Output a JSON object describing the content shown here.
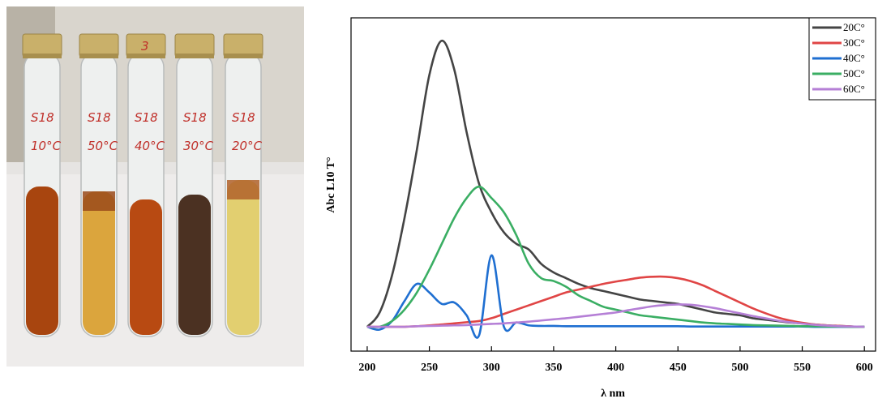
{
  "photo": {
    "cap_mark": "3",
    "tubes": [
      {
        "sample": "S18",
        "temp": "10°C"
      },
      {
        "sample": "S18",
        "temp": "50°C"
      },
      {
        "sample": "S18",
        "temp": "40°C"
      },
      {
        "sample": "S18",
        "temp": "30°C"
      },
      {
        "sample": "S18",
        "temp": "20°C"
      }
    ]
  },
  "chart_data": {
    "type": "line",
    "x_label": "λ nm",
    "y_label": "Abc L10 T°",
    "x": [
      200,
      210,
      220,
      230,
      240,
      250,
      260,
      270,
      280,
      290,
      300,
      310,
      320,
      330,
      340,
      350,
      360,
      370,
      380,
      390,
      400,
      410,
      420,
      430,
      440,
      450,
      460,
      470,
      480,
      490,
      500,
      510,
      520,
      530,
      540,
      550,
      560,
      570,
      580,
      590,
      600
    ],
    "xlim": [
      187,
      609
    ],
    "xticks": [
      200,
      250,
      300,
      350,
      400,
      450,
      500,
      550,
      600
    ],
    "ylim": [
      -0.085,
      1.08
    ],
    "legend": "upper right",
    "series": [
      {
        "name": "20C°",
        "color": "#444444",
        "values": [
          0,
          0.05,
          0.18,
          0.38,
          0.62,
          0.88,
          1.0,
          0.9,
          0.68,
          0.5,
          0.4,
          0.33,
          0.29,
          0.27,
          0.22,
          0.19,
          0.17,
          0.15,
          0.135,
          0.125,
          0.115,
          0.105,
          0.095,
          0.09,
          0.085,
          0.08,
          0.07,
          0.06,
          0.05,
          0.045,
          0.04,
          0.03,
          0.025,
          0.02,
          0.015,
          0.012,
          0.008,
          0.005,
          0.003,
          0.001,
          0
        ]
      },
      {
        "name": "30C°",
        "color": "#e04545",
        "values": [
          0,
          0,
          0,
          0,
          0.002,
          0.005,
          0.008,
          0.012,
          0.016,
          0.02,
          0.03,
          0.045,
          0.06,
          0.075,
          0.09,
          0.105,
          0.12,
          0.13,
          0.14,
          0.15,
          0.158,
          0.165,
          0.172,
          0.175,
          0.175,
          0.17,
          0.16,
          0.145,
          0.125,
          0.105,
          0.085,
          0.065,
          0.048,
          0.033,
          0.022,
          0.014,
          0.008,
          0.005,
          0.003,
          0.001,
          0
        ]
      },
      {
        "name": "40C°",
        "color": "#1f6fd1",
        "values": [
          0,
          -0.01,
          0.02,
          0.09,
          0.15,
          0.12,
          0.08,
          0.085,
          0.04,
          -0.03,
          0.25,
          0.0,
          0.015,
          0.005,
          0.003,
          0.003,
          0.002,
          0.002,
          0.002,
          0.002,
          0.002,
          0.002,
          0.002,
          0.002,
          0.002,
          0.002,
          0.001,
          0.001,
          0.001,
          0.001,
          0.001,
          0.001,
          0.001,
          0.001,
          0.001,
          0.001,
          0,
          0,
          0,
          0,
          0
        ]
      },
      {
        "name": "50C°",
        "color": "#3aae63",
        "values": [
          0,
          0,
          0.02,
          0.06,
          0.12,
          0.2,
          0.29,
          0.38,
          0.45,
          0.49,
          0.45,
          0.4,
          0.32,
          0.22,
          0.17,
          0.16,
          0.14,
          0.11,
          0.09,
          0.07,
          0.06,
          0.05,
          0.04,
          0.035,
          0.03,
          0.025,
          0.02,
          0.015,
          0.012,
          0.01,
          0.008,
          0.006,
          0.005,
          0.004,
          0.003,
          0.002,
          0.002,
          0.001,
          0.001,
          0,
          0
        ]
      },
      {
        "name": "60C°",
        "color": "#b57fd6",
        "values": [
          0,
          0,
          0,
          0,
          0.002,
          0.003,
          0.004,
          0.005,
          0.006,
          0.008,
          0.01,
          0.012,
          0.015,
          0.018,
          0.022,
          0.026,
          0.03,
          0.035,
          0.04,
          0.045,
          0.05,
          0.058,
          0.065,
          0.072,
          0.076,
          0.078,
          0.077,
          0.072,
          0.065,
          0.056,
          0.047,
          0.038,
          0.03,
          0.022,
          0.016,
          0.011,
          0.007,
          0.004,
          0.002,
          0.001,
          0
        ]
      }
    ]
  }
}
